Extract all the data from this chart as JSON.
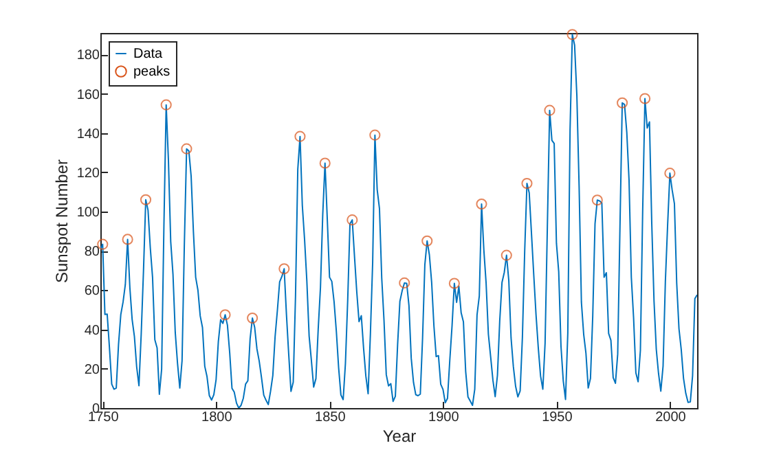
{
  "chart_data": {
    "type": "line",
    "xlabel": "Year",
    "ylabel": "Sunspot Number",
    "legend": "top left",
    "grid": false,
    "xlim": [
      1749,
      2012
    ],
    "xticks": [
      1750,
      1800,
      1850,
      1900,
      1950,
      2000
    ],
    "ylim": [
      0,
      191
    ],
    "yticks": [
      0,
      20,
      40,
      60,
      80,
      100,
      120,
      140,
      160,
      180
    ],
    "x": [
      1749,
      1750,
      1751,
      1752,
      1753,
      1754,
      1755,
      1756,
      1757,
      1758,
      1759,
      1760,
      1761,
      1762,
      1763,
      1764,
      1765,
      1766,
      1767,
      1768,
      1769,
      1770,
      1771,
      1772,
      1773,
      1774,
      1775,
      1776,
      1777,
      1778,
      1779,
      1780,
      1781,
      1782,
      1783,
      1784,
      1785,
      1786,
      1787,
      1788,
      1789,
      1790,
      1791,
      1792,
      1793,
      1794,
      1795,
      1796,
      1797,
      1798,
      1799,
      1800,
      1801,
      1802,
      1803,
      1804,
      1805,
      1806,
      1807,
      1808,
      1809,
      1810,
      1811,
      1812,
      1813,
      1814,
      1815,
      1816,
      1817,
      1818,
      1819,
      1820,
      1821,
      1822,
      1823,
      1824,
      1825,
      1826,
      1827,
      1828,
      1829,
      1830,
      1831,
      1832,
      1833,
      1834,
      1835,
      1836,
      1837,
      1838,
      1839,
      1840,
      1841,
      1842,
      1843,
      1844,
      1845,
      1846,
      1847,
      1848,
      1849,
      1850,
      1851,
      1852,
      1853,
      1854,
      1855,
      1856,
      1857,
      1858,
      1859,
      1860,
      1861,
      1862,
      1863,
      1864,
      1865,
      1866,
      1867,
      1868,
      1869,
      1870,
      1871,
      1872,
      1873,
      1874,
      1875,
      1876,
      1877,
      1878,
      1879,
      1880,
      1881,
      1882,
      1883,
      1884,
      1885,
      1886,
      1887,
      1888,
      1889,
      1890,
      1891,
      1892,
      1893,
      1894,
      1895,
      1896,
      1897,
      1898,
      1899,
      1900,
      1901,
      1902,
      1903,
      1904,
      1905,
      1906,
      1907,
      1908,
      1909,
      1910,
      1911,
      1912,
      1913,
      1914,
      1915,
      1916,
      1917,
      1918,
      1919,
      1920,
      1921,
      1922,
      1923,
      1924,
      1925,
      1926,
      1927,
      1928,
      1929,
      1930,
      1931,
      1932,
      1933,
      1934,
      1935,
      1936,
      1937,
      1938,
      1939,
      1940,
      1941,
      1942,
      1943,
      1944,
      1945,
      1946,
      1947,
      1948,
      1949,
      1950,
      1951,
      1952,
      1953,
      1954,
      1955,
      1956,
      1957,
      1958,
      1959,
      1960,
      1961,
      1962,
      1963,
      1964,
      1965,
      1966,
      1967,
      1968,
      1969,
      1970,
      1971,
      1972,
      1973,
      1974,
      1975,
      1976,
      1977,
      1978,
      1979,
      1980,
      1981,
      1982,
      1983,
      1984,
      1985,
      1986,
      1987,
      1988,
      1989,
      1990,
      1991,
      1992,
      1993,
      1994,
      1995,
      1996,
      1997,
      1998,
      1999,
      2000,
      2001,
      2002,
      2003,
      2004,
      2005,
      2006,
      2007,
      2008,
      2009,
      2010,
      2011,
      2012
    ],
    "series": [
      {
        "name": "Data",
        "type": "line",
        "color": "#0072bd",
        "values": [
          80.9,
          83.4,
          47.7,
          47.8,
          30.7,
          12.2,
          9.6,
          10.2,
          32.4,
          47.6,
          54.0,
          62.9,
          85.9,
          61.2,
          45.1,
          36.4,
          20.9,
          11.4,
          37.8,
          69.8,
          106.1,
          100.8,
          81.6,
          66.5,
          34.8,
          30.6,
          7.0,
          19.8,
          92.5,
          154.4,
          125.9,
          84.8,
          68.1,
          38.5,
          22.8,
          10.2,
          24.1,
          82.9,
          132.0,
          130.9,
          118.1,
          89.9,
          66.6,
          60.0,
          46.9,
          41.0,
          21.3,
          16.0,
          6.4,
          4.1,
          6.8,
          14.5,
          34.0,
          45.0,
          43.1,
          47.5,
          42.2,
          28.1,
          10.1,
          8.1,
          2.5,
          0.0,
          1.4,
          5.0,
          12.2,
          13.9,
          35.4,
          45.8,
          41.1,
          30.1,
          23.9,
          15.6,
          6.6,
          4.0,
          1.8,
          8.5,
          16.6,
          36.3,
          49.6,
          64.2,
          67.0,
          70.9,
          47.8,
          27.5,
          8.5,
          13.2,
          56.9,
          121.5,
          138.3,
          103.2,
          85.7,
          64.6,
          36.7,
          24.2,
          10.7,
          15.0,
          40.1,
          61.5,
          98.5,
          124.7,
          96.3,
          66.6,
          64.5,
          54.1,
          39.0,
          20.6,
          6.7,
          4.3,
          22.7,
          54.8,
          93.8,
          95.8,
          77.2,
          59.1,
          44.0,
          47.0,
          30.5,
          16.3,
          7.3,
          37.6,
          74.0,
          139.0,
          111.2,
          101.6,
          66.2,
          44.7,
          17.0,
          11.3,
          12.4,
          3.4,
          6.0,
          32.3,
          54.3,
          59.7,
          63.7,
          63.5,
          52.2,
          25.4,
          13.1,
          6.8,
          6.3,
          7.1,
          35.6,
          73.0,
          85.1,
          78.0,
          64.0,
          41.8,
          26.2,
          26.7,
          12.1,
          9.5,
          2.7,
          5.0,
          24.4,
          42.0,
          63.5,
          53.8,
          62.0,
          48.5,
          43.9,
          18.6,
          5.7,
          3.6,
          1.4,
          9.6,
          47.4,
          57.1,
          103.9,
          80.6,
          63.6,
          37.6,
          26.1,
          14.2,
          5.8,
          16.7,
          44.3,
          63.9,
          69.0,
          77.8,
          64.9,
          35.7,
          21.2,
          11.1,
          5.7,
          8.7,
          36.1,
          79.7,
          114.4,
          109.6,
          88.8,
          67.8,
          47.5,
          30.6,
          16.3,
          9.6,
          33.2,
          92.6,
          151.6,
          136.3,
          134.7,
          83.9,
          69.4,
          31.5,
          13.9,
          4.4,
          38.0,
          141.7,
          190.2,
          184.8,
          159.0,
          112.3,
          53.9,
          37.6,
          27.9,
          10.2,
          15.1,
          47.0,
          93.8,
          105.9,
          105.5,
          104.5,
          66.6,
          68.9,
          38.0,
          34.5,
          15.5,
          12.6,
          27.5,
          92.5,
          155.4,
          154.6,
          140.4,
          115.9,
          66.6,
          45.9,
          17.9,
          13.4,
          29.4,
          100.2,
          157.6,
          142.6,
          145.7,
          94.3,
          54.6,
          29.9,
          17.5,
          8.6,
          21.5,
          64.3,
          93.3,
          119.6,
          111.0,
          104.0,
          63.7,
          40.4,
          29.8,
          15.2,
          7.5,
          2.9,
          3.1,
          16.5,
          55.7,
          57.6
        ]
      },
      {
        "name": "peaks",
        "type": "scatter",
        "color": "#d95319",
        "marker": "circle",
        "x": [
          1750,
          1761,
          1769,
          1778,
          1787,
          1804,
          1816,
          1830,
          1837,
          1848,
          1860,
          1870,
          1883,
          1893,
          1905,
          1917,
          1928,
          1937,
          1947,
          1957,
          1968,
          1979,
          1989,
          2000
        ],
        "values": [
          83.4,
          85.9,
          106.1,
          154.4,
          132.0,
          47.5,
          45.8,
          70.9,
          138.3,
          124.7,
          95.8,
          139.0,
          63.7,
          85.1,
          63.5,
          103.9,
          77.8,
          114.4,
          151.6,
          190.2,
          105.9,
          155.4,
          157.6,
          119.6
        ]
      }
    ]
  }
}
